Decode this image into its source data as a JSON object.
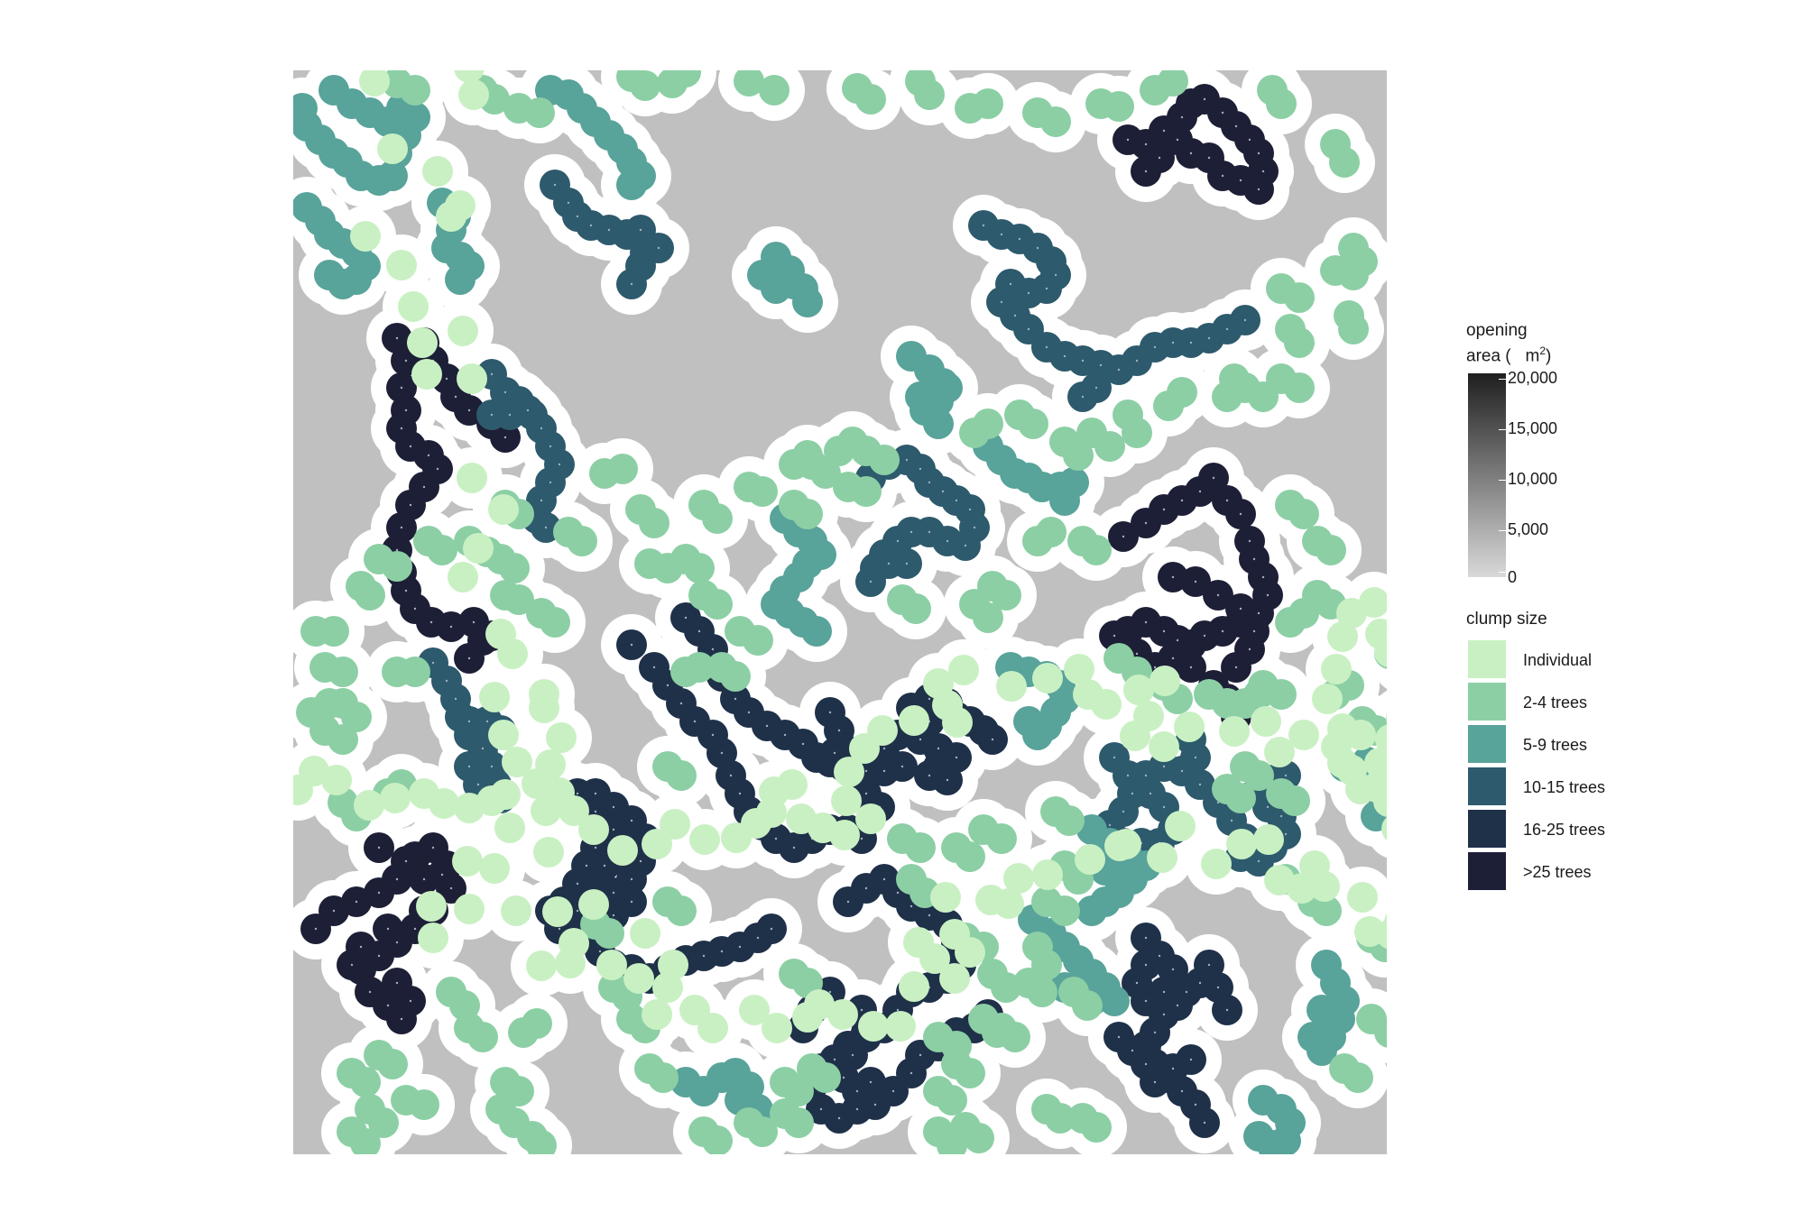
{
  "colors": {
    "panel_background": "#ffffff",
    "opening_fill": "#c0c0c0",
    "tree_buffer": "#ffffff",
    "colorbar_low": "#d9d9d9",
    "colorbar_high": "#1f1f1f"
  },
  "legend": {
    "opening_title_line1": "opening",
    "opening_title_line2": "area (",
    "opening_unit": "m",
    "opening_superscript": "2",
    "opening_close": ")",
    "colorbar_ticks": [
      "20,000",
      "15,000",
      "10,000",
      "5,000",
      "0"
    ],
    "clump_title": "clump size",
    "clump_items": [
      {
        "label": "Individual",
        "color": "#c9f0c3"
      },
      {
        "label": "2-4 trees",
        "color": "#8ccfa5"
      },
      {
        "label": "5-9 trees",
        "color": "#58a39a"
      },
      {
        "label": "10-15 trees",
        "color": "#2d5a6c"
      },
      {
        "label": "16-25 trees",
        "color": "#1f3049"
      },
      {
        "label": ">25 trees",
        "color": "#1d1f36"
      }
    ]
  },
  "chart_data": {
    "type": "scatter",
    "title": "",
    "xlabel": "",
    "ylabel": "",
    "background": "opening area map (grey) with white tree-crown buffers",
    "colorbar": {
      "name": "opening area (m2)",
      "range": [
        0,
        20000
      ],
      "ticks": [
        0,
        5000,
        10000,
        15000,
        20000
      ]
    },
    "series": [
      {
        "name": "Individual",
        "color_index": 0,
        "points": [
          [
            415,
            90
          ],
          [
            520,
            75
          ],
          [
            525,
            105
          ],
          [
            435,
            165
          ],
          [
            485,
            190
          ],
          [
            510,
            228
          ],
          [
            405,
            262
          ],
          [
            500,
            240
          ],
          [
            445,
            294
          ],
          [
            458,
            340
          ],
          [
            468,
            380
          ],
          [
            513,
            367
          ],
          [
            473,
            415
          ],
          [
            523,
            420
          ],
          [
            523,
            530
          ],
          [
            558,
            565
          ],
          [
            530,
            608
          ],
          [
            513,
            640
          ],
          [
            555,
            703
          ],
          [
            568,
            725
          ],
          [
            548,
            773
          ],
          [
            558,
            815
          ],
          [
            603,
            770
          ],
          [
            603,
            785
          ],
          [
            622,
            818
          ],
          [
            610,
            848
          ],
          [
            605,
            899
          ],
          [
            608,
            945
          ],
          [
            565,
            918
          ],
          [
            518,
            955
          ],
          [
            478,
            1005
          ],
          [
            480,
            1040
          ],
          [
            520,
            1008
          ],
          [
            572,
            1010
          ],
          [
            548,
            963
          ],
          [
            618,
            1011
          ],
          [
            658,
            1003
          ],
          [
            636,
            1046
          ],
          [
            600,
            1071
          ],
          [
            632,
            1068
          ],
          [
            678,
            1070
          ],
          [
            708,
            1085
          ],
          [
            746,
            1070
          ],
          [
            715,
            1035
          ],
          [
            728,
            1125
          ],
          [
            740,
            1095
          ],
          [
            770,
            1120
          ],
          [
            790,
            1140
          ],
          [
            836,
            1120
          ],
          [
            861,
            1140
          ],
          [
            895,
            1128
          ],
          [
            908,
            1114
          ],
          [
            934,
            1125
          ],
          [
            968,
            1138
          ],
          [
            998,
            1138
          ],
          [
            1013,
            1094
          ],
          [
            1058,
            1085
          ],
          [
            1075,
            1056
          ],
          [
            1058,
            1036
          ],
          [
            1036,
            1063
          ],
          [
            1018,
            1045
          ],
          [
            1048,
            995
          ],
          [
            1098,
            998
          ],
          [
            1118,
            1002
          ],
          [
            1129,
            974
          ],
          [
            1161,
            970
          ],
          [
            1208,
            953
          ],
          [
            1241,
            938
          ],
          [
            1248,
            936
          ],
          [
            1288,
            951
          ],
          [
            1308,
            916
          ],
          [
            1348,
            958
          ],
          [
            1376,
            936
          ],
          [
            1406,
            931
          ],
          [
            1418,
            976
          ],
          [
            1443,
            985
          ],
          [
            1457,
            960
          ],
          [
            1468,
            983
          ],
          [
            1510,
            995
          ],
          [
            1518,
            1033
          ],
          [
            1542,
            1036
          ],
          [
            1551,
            1023
          ],
          [
            1588,
            1006
          ],
          [
            1588,
            958
          ],
          [
            1568,
            938
          ],
          [
            1548,
            919
          ],
          [
            1570,
            896
          ],
          [
            1582,
            876
          ],
          [
            1539,
            889
          ],
          [
            1526,
            873
          ],
          [
            1508,
            875
          ],
          [
            1498,
            854
          ],
          [
            1481,
            828
          ],
          [
            1488,
            808
          ],
          [
            1471,
            775
          ],
          [
            1481,
            742
          ],
          [
            1488,
            706
          ],
          [
            1498,
            680
          ],
          [
            1523,
            668
          ],
          [
            1530,
            703
          ],
          [
            1540,
            723
          ],
          [
            1568,
            748
          ],
          [
            1597,
            758
          ],
          [
            1553,
            796
          ],
          [
            1541,
            820
          ],
          [
            1529,
            846
          ],
          [
            1508,
            815
          ],
          [
            1488,
            846
          ],
          [
            1445,
            815
          ],
          [
            1418,
            834
          ],
          [
            1403,
            800
          ],
          [
            1368,
            811
          ],
          [
            1318,
            806
          ],
          [
            1290,
            828
          ],
          [
            1258,
            816
          ],
          [
            1273,
            794
          ],
          [
            1291,
            755
          ],
          [
            1262,
            765
          ],
          [
            1226,
            781
          ],
          [
            1206,
            770
          ],
          [
            1196,
            742
          ],
          [
            1161,
            752
          ],
          [
            1121,
            761
          ],
          [
            1068,
            743
          ],
          [
            1040,
            758
          ],
          [
            1050,
            782
          ],
          [
            1061,
            801
          ],
          [
            1013,
            799
          ],
          [
            978,
            810
          ],
          [
            958,
            830
          ],
          [
            941,
            856
          ],
          [
            938,
            888
          ],
          [
            965,
            908
          ],
          [
            936,
            926
          ],
          [
            912,
            918
          ],
          [
            888,
            908
          ],
          [
            878,
            870
          ],
          [
            858,
            878
          ],
          [
            855,
            901
          ],
          [
            838,
            913
          ],
          [
            816,
            929
          ],
          [
            781,
            931
          ],
          [
            748,
            914
          ],
          [
            728,
            936
          ],
          [
            690,
            943
          ],
          [
            658,
            920
          ],
          [
            636,
            899
          ],
          [
            620,
            879
          ],
          [
            595,
            869
          ],
          [
            573,
            845
          ],
          [
            560,
            881
          ],
          [
            545,
            888
          ],
          [
            520,
            896
          ],
          [
            492,
            891
          ],
          [
            470,
            880
          ],
          [
            438,
            885
          ],
          [
            409,
            893
          ],
          [
            373,
            865
          ],
          [
            348,
            855
          ],
          [
            330,
            876
          ],
          [
            305,
            868
          ],
          [
            275,
            844
          ],
          [
            265,
            826
          ],
          [
            233,
            818
          ],
          [
            205,
            829
          ],
          [
            200,
            850
          ],
          [
            188,
            866
          ],
          [
            161,
            861
          ],
          [
            128,
            844
          ],
          [
            90,
            837
          ],
          [
            65,
            813
          ],
          [
            34,
            826
          ],
          [
            35,
            868
          ],
          [
            30,
            891
          ],
          [
            51,
            898
          ],
          [
            78,
            901
          ],
          [
            98,
            882
          ],
          [
            120,
            912
          ],
          [
            140,
            929
          ],
          [
            165,
            925
          ],
          [
            185,
            947
          ],
          [
            213,
            941
          ],
          [
            240,
            951
          ],
          [
            260,
            968
          ]
        ]
      }
    ]
  }
}
